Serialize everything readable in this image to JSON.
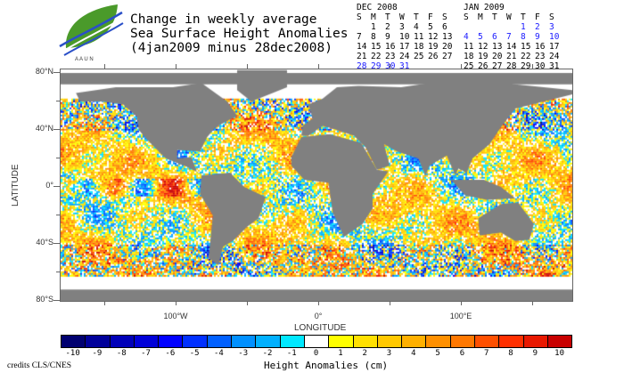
{
  "header": {
    "title_lines": [
      "Change in weekly average",
      "Sea Surface Height Anomalies",
      "(4jan2009 minus 28dec2008)"
    ],
    "logo": "AAUN HAII"
  },
  "calendars": [
    {
      "title": "DEC 2008",
      "days": [
        "S",
        "M",
        "T",
        "W",
        "T",
        "F",
        "S"
      ],
      "weeks": [
        [
          "",
          "1",
          "2",
          "3",
          "4",
          "5",
          "6"
        ],
        [
          "7",
          "8",
          "9",
          "10",
          "11",
          "12",
          "13"
        ],
        [
          "14",
          "15",
          "16",
          "17",
          "18",
          "19",
          "20"
        ],
        [
          "21",
          "22",
          "23",
          "24",
          "25",
          "26",
          "27"
        ],
        [
          "28",
          "29",
          "30",
          "31",
          "",
          "",
          ""
        ]
      ],
      "highlight": [
        "28",
        "29",
        "30",
        "31"
      ]
    },
    {
      "title": "JAN 2009",
      "days": [
        "S",
        "M",
        "T",
        "W",
        "T",
        "F",
        "S"
      ],
      "weeks": [
        [
          "",
          "",
          "",
          "",
          "1",
          "2",
          "3"
        ],
        [
          "4",
          "5",
          "6",
          "7",
          "8",
          "9",
          "10"
        ],
        [
          "11",
          "12",
          "13",
          "14",
          "15",
          "16",
          "17"
        ],
        [
          "18",
          "19",
          "20",
          "21",
          "22",
          "23",
          "24"
        ],
        [
          "25",
          "26",
          "27",
          "28",
          "29",
          "30",
          "31"
        ]
      ],
      "highlight": [
        "1",
        "2",
        "3",
        "4",
        "5",
        "6",
        "7",
        "8",
        "9",
        "10"
      ]
    }
  ],
  "map": {
    "ylabel": "LATITUDE",
    "xlabel": "LONGITUDE",
    "lat_ticks": [
      "80°N",
      "40°N",
      "0°",
      "40°S",
      "80°S"
    ],
    "lon_ticks": [
      "100°W",
      "0°",
      "100°E"
    ]
  },
  "colorbar": {
    "title": "Height Anomalies (cm)",
    "labels": [
      "-10",
      "-9",
      "-8",
      "-7",
      "-6",
      "-5",
      "-4",
      "-3",
      "-2",
      "-1",
      "0",
      "1",
      "2",
      "3",
      "4",
      "5",
      "6",
      "7",
      "8",
      "9",
      "10"
    ],
    "colors": [
      "#000070",
      "#00009a",
      "#0000b8",
      "#0000d8",
      "#0000ff",
      "#0030ff",
      "#0060ff",
      "#0090ff",
      "#00b0ff",
      "#00e8ff",
      "#ffffff",
      "#ffff00",
      "#ffe000",
      "#ffc800",
      "#ffb000",
      "#ff9000",
      "#ff7800",
      "#ff5000",
      "#ff3000",
      "#e81800",
      "#c80000"
    ]
  },
  "credits": "credits CLS/CNES"
}
